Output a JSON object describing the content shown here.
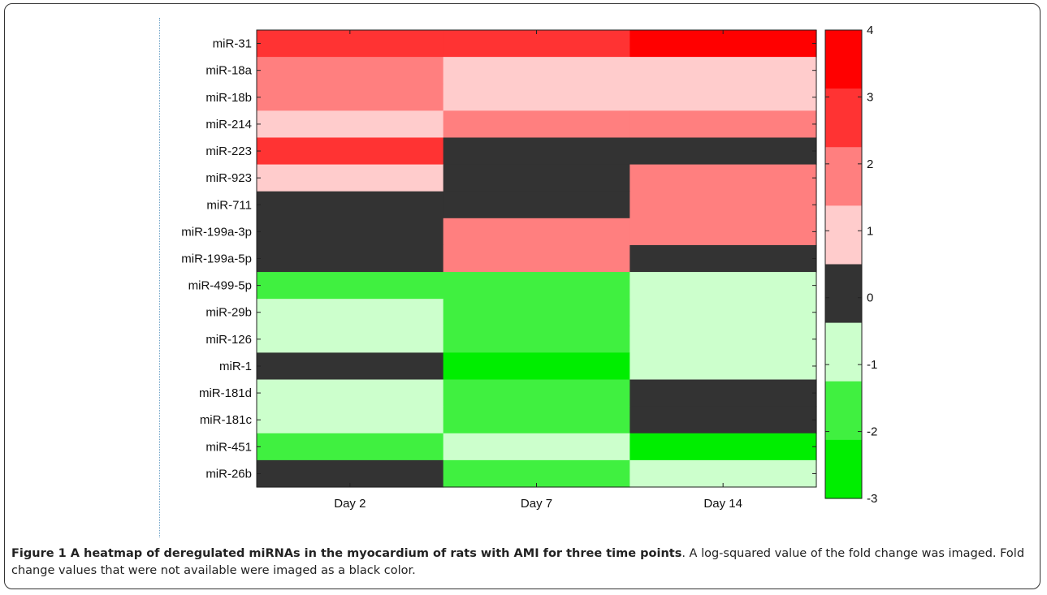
{
  "chart_data": {
    "type": "heatmap",
    "columns": [
      "Day 2",
      "Day 7",
      "Day 14"
    ],
    "rows": [
      "miR-31",
      "miR-18a",
      "miR-18b",
      "miR-214",
      "miR-223",
      "miR-923",
      "miR-711",
      "miR-199a-3p",
      "miR-199a-5p",
      "miR-499-5p",
      "miR-29b",
      "miR-126",
      "miR-1",
      "miR-181d",
      "miR-181c",
      "miR-451",
      "miR-26b"
    ],
    "values": [
      [
        3,
        3,
        4
      ],
      [
        2,
        1,
        1
      ],
      [
        2,
        1,
        1
      ],
      [
        1,
        2,
        2
      ],
      [
        3,
        null,
        null
      ],
      [
        1,
        null,
        2
      ],
      [
        null,
        null,
        2
      ],
      [
        null,
        2,
        2
      ],
      [
        null,
        2,
        null
      ],
      [
        -2,
        -2,
        -1
      ],
      [
        -1,
        -2,
        -1
      ],
      [
        -1,
        -2,
        -1
      ],
      [
        null,
        -3,
        -1
      ],
      [
        -1,
        -2,
        null
      ],
      [
        -1,
        -2,
        null
      ],
      [
        -2,
        -1,
        -3
      ],
      [
        null,
        -2,
        -1
      ]
    ],
    "missing_color": "#333333",
    "colorbar": {
      "ticks": [
        "4",
        "3",
        "2",
        "1",
        "0",
        "-1",
        "-2",
        "-3"
      ],
      "range": [
        -3,
        4
      ],
      "levels": [
        {
          "value": 4,
          "color": "#ff0000"
        },
        {
          "value": 3,
          "color": "#ff3333"
        },
        {
          "value": 2,
          "color": "#ff7f7f"
        },
        {
          "value": 1,
          "color": "#ffcccc"
        },
        {
          "value": 0,
          "color": "#333333"
        },
        {
          "value": -1,
          "color": "#ccffcc"
        },
        {
          "value": -2,
          "color": "#40f040"
        },
        {
          "value": -3,
          "color": "#00ee00"
        }
      ]
    }
  },
  "caption": {
    "bold": "Figure 1 A heatmap of deregulated miRNAs in the myocardium of rats with AMI for three time points",
    "rest": ". A log-squared value of the fold change was imaged. Fold change values that were not available were imaged as a black color."
  }
}
